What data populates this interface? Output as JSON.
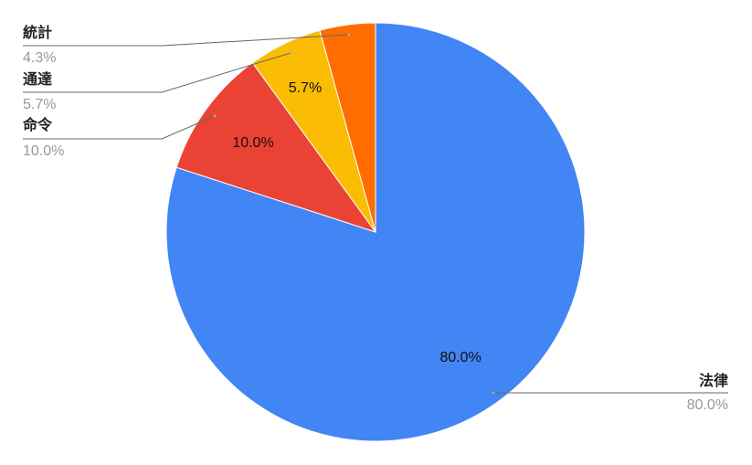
{
  "chart_data": {
    "type": "pie",
    "categories": [
      "法律",
      "命令",
      "通達",
      "統計"
    ],
    "values": [
      80.0,
      10.0,
      5.7,
      4.3
    ],
    "value_labels": [
      "80.0%",
      "10.0%",
      "5.7%",
      "4.3%"
    ],
    "colors": [
      "#4285f4",
      "#ea4335",
      "#fbbc04",
      "#ff6d01"
    ]
  }
}
